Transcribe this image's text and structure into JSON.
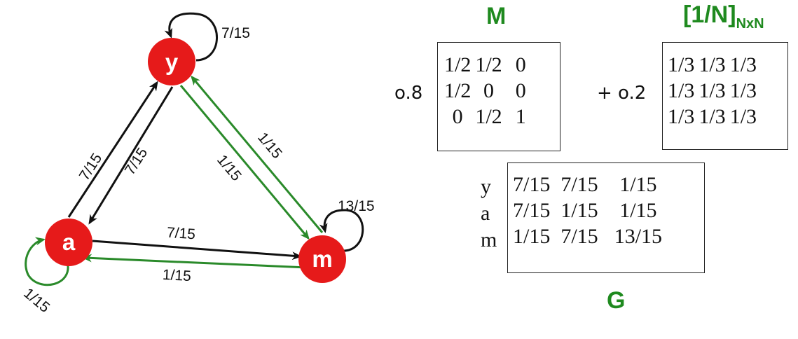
{
  "graph": {
    "nodes": {
      "y": "y",
      "a": "a",
      "m": "m"
    },
    "edges": {
      "y_self": "7/15",
      "a_to_y": "7/15",
      "y_to_a": "7/15",
      "m_to_y": "1/15",
      "y_to_m": "1/15",
      "m_self": "13/15",
      "a_to_m": "7/15",
      "m_to_a": "1/15",
      "a_self": "1/15"
    },
    "colors": {
      "node": "#e61a1a",
      "black_edge": "#111111",
      "green_edge": "#2a8a2a"
    }
  },
  "formula": {
    "M_title": "M",
    "coef_M": "o.8",
    "M_rows": [
      [
        "1/2",
        "1/2",
        "0"
      ],
      [
        "1/2",
        "0",
        "0"
      ],
      [
        "0",
        "1/2",
        "1"
      ]
    ],
    "plus_coef": "+ o.2",
    "uniform_title": "[1/N]",
    "uniform_subscript": "NxN",
    "uniform_rows": [
      [
        "1/3",
        "1/3",
        "1/3"
      ],
      [
        "1/3",
        "1/3",
        "1/3"
      ],
      [
        "1/3",
        "1/3",
        "1/3"
      ]
    ],
    "G_row_labels": [
      "y",
      "a",
      "m"
    ],
    "G_rows": [
      [
        "7/15",
        "7/15",
        "1/15"
      ],
      [
        "7/15",
        "1/15",
        "1/15"
      ],
      [
        "1/15",
        "7/15",
        "13/15"
      ]
    ],
    "G_title": "G",
    "title_color": "#1f8a1f"
  }
}
